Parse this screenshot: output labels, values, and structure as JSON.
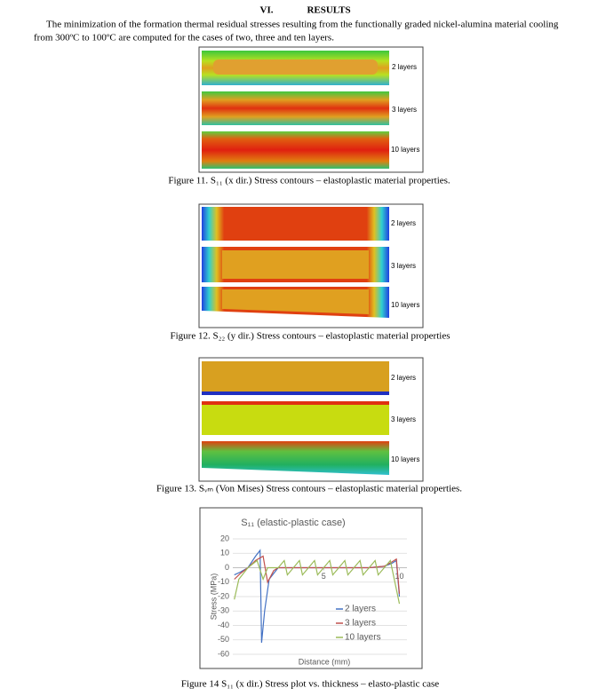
{
  "section": {
    "number": "VI.",
    "title": "RESULTS"
  },
  "paragraph": [
    "The minimization of the formation thermal residual stresses resulting from the functionally graded nickel-alumina material cooling",
    "from 300ºC to 100ºC are computed for the cases of two, three and ten layers."
  ],
  "figures": [
    {
      "labels": [
        "2 layers",
        "3 layers",
        "10 layers"
      ],
      "caption": "Figure 11. S₁₁ (x dir.) Stress contours – elastoplastic material properties."
    },
    {
      "labels": [
        "2 layers",
        "3 layers",
        "10 layers"
      ],
      "caption": "Figure 12. S₂₂ (y dir.) Stress contours – elastoplastic material properties"
    },
    {
      "labels": [
        "2 layers",
        "3 layers",
        "10 layers"
      ],
      "caption": "Figure 13. Sᵥₘ (Von Mises) Stress contours – elastoplastic material properties."
    }
  ],
  "chart_data": {
    "type": "line",
    "title": "S₁₁ (elastic-plastic case)",
    "x_label": "Distance (mm)",
    "y_label": "Stress (MPa)",
    "xlim": [
      -1,
      10.5
    ],
    "xticks": [
      5,
      10
    ],
    "ylim": [
      -60,
      20
    ],
    "yticks": [
      20,
      10,
      0,
      -10,
      -20,
      -30,
      -40,
      -50,
      -60
    ],
    "grid": true,
    "series": [
      {
        "name": "2 layers",
        "color": "#4472c4",
        "x": [
          -0.9,
          -0.5,
          0,
          0.5,
          0.8,
          0.9,
          1.1,
          1.4,
          2,
          3,
          4,
          5,
          6,
          7,
          8,
          9,
          9.5,
          9.8,
          10
        ],
        "values": [
          -5,
          -3,
          0,
          8,
          12,
          -52,
          -30,
          -8,
          0,
          0,
          0,
          0,
          0,
          0,
          0,
          1,
          3,
          5,
          -20
        ]
      },
      {
        "name": "3 layers",
        "color": "#c0504d",
        "x": [
          -0.9,
          -0.5,
          0,
          0.5,
          1.0,
          1.3,
          1.7,
          2,
          3,
          4,
          5,
          6,
          7,
          8,
          9,
          9.5,
          9.8,
          10
        ],
        "values": [
          -8,
          -4,
          0,
          5,
          8,
          -10,
          -2,
          0,
          0,
          0,
          0,
          0,
          0,
          0,
          1,
          4,
          6,
          -18
        ]
      },
      {
        "name": "10 layers",
        "color": "#9bbb59",
        "x": [
          -0.9,
          -0.6,
          0,
          0.6,
          1.0,
          1.3,
          2,
          2.4,
          2.6,
          3.4,
          3.6,
          4.4,
          4.6,
          5.4,
          5.6,
          6.4,
          6.6,
          7.4,
          7.6,
          8.4,
          8.6,
          9.4,
          9.6,
          10
        ],
        "values": [
          -22,
          -8,
          0,
          5,
          -8,
          0,
          0,
          5,
          -5,
          5,
          -5,
          5,
          -5,
          5,
          -5,
          5,
          -5,
          5,
          -5,
          5,
          -5,
          5,
          -5,
          -25
        ]
      }
    ],
    "legend": "lower right"
  },
  "figure14_caption": "Figure 14 S₁₁ (x dir.) Stress plot vs. thickness – elasto-plastic case"
}
